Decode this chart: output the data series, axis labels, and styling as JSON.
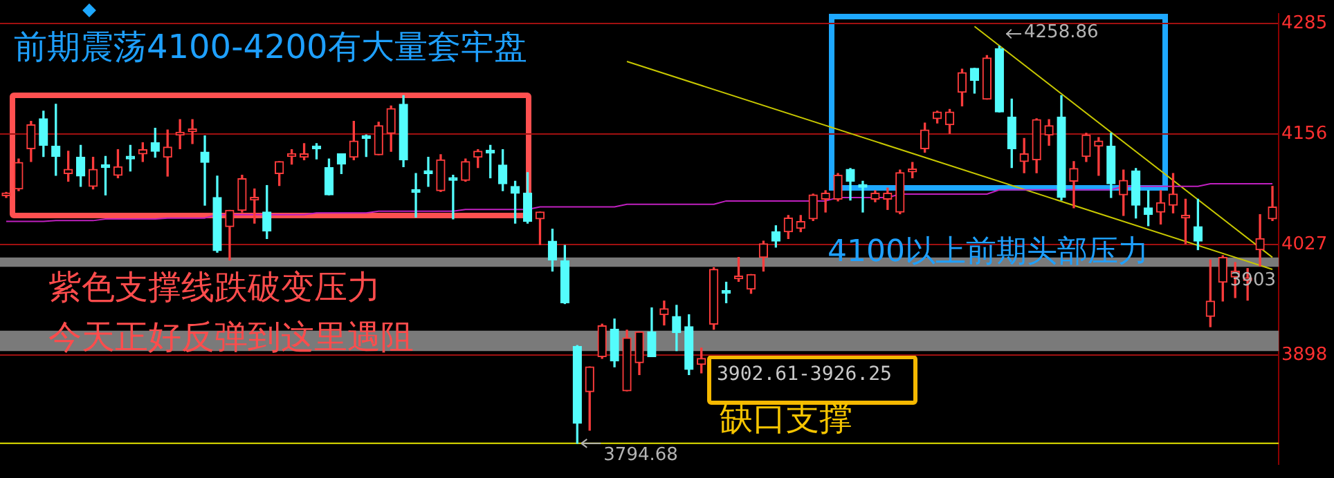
{
  "chart_data": {
    "type": "candlestick",
    "categories": [
      null,
      null,
      null,
      null,
      null,
      null,
      null,
      null,
      null,
      null,
      null,
      null,
      null,
      null,
      null,
      null,
      null,
      null,
      null,
      null,
      null,
      null,
      null,
      null,
      null,
      null,
      null,
      null,
      null,
      null,
      null,
      null,
      null,
      null,
      null,
      null,
      null,
      null,
      null,
      null,
      null,
      null,
      null,
      null,
      null,
      null,
      null,
      null,
      null,
      null,
      null,
      null,
      null,
      null,
      null,
      null,
      null,
      null,
      null,
      null,
      null,
      null,
      null,
      null,
      null,
      null,
      null,
      null,
      null,
      null,
      null,
      null,
      null,
      null,
      null,
      null,
      null,
      null,
      null,
      null,
      null,
      null,
      null,
      null,
      null,
      null,
      null,
      null,
      null,
      null,
      null,
      null,
      null,
      null,
      null,
      null,
      null,
      null,
      null,
      null,
      null,
      null,
      null
    ],
    "ohlc": [
      [
        4084,
        4088,
        4082,
        4086
      ],
      [
        4092,
        4127,
        4090,
        4123
      ],
      [
        4139,
        4171,
        4124,
        4167
      ],
      [
        4174,
        4183,
        4130,
        4143
      ],
      [
        4142,
        4191,
        4108,
        4130
      ],
      [
        4110,
        4136,
        4101,
        4115
      ],
      [
        4129,
        4143,
        4095,
        4107
      ],
      [
        4095,
        4129,
        4092,
        4115
      ],
      [
        4120,
        4130,
        4085,
        4117
      ],
      [
        4108,
        4138,
        4105,
        4118
      ],
      [
        4129,
        4143,
        4113,
        4127
      ],
      [
        4133,
        4146,
        4124,
        4138
      ],
      [
        4146,
        4163,
        4129,
        4136
      ],
      [
        4129,
        4161,
        4107,
        4141
      ],
      [
        4155,
        4173,
        4139,
        4156
      ],
      [
        4159,
        4173,
        4145,
        4161
      ],
      [
        4135,
        4154,
        4073,
        4123
      ],
      [
        4082,
        4107,
        4018,
        4020
      ],
      [
        4048,
        4067,
        4009,
        4067
      ],
      [
        4067,
        4108,
        4065,
        4104
      ],
      [
        4079,
        4092,
        4052,
        4081
      ],
      [
        4065,
        4096,
        4034,
        4043
      ],
      [
        4110,
        4124,
        4096,
        4124
      ],
      [
        4130,
        4138,
        4121,
        4132
      ],
      [
        4129,
        4145,
        4126,
        4133
      ],
      [
        4140,
        4145,
        4127,
        4139
      ],
      [
        4117,
        4127,
        4085,
        4085
      ],
      [
        4133,
        4133,
        4110,
        4121
      ],
      [
        4129,
        4171,
        4126,
        4148
      ],
      [
        4153,
        4155,
        4130,
        4151
      ],
      [
        4132,
        4170,
        4132,
        4166
      ],
      [
        4157,
        4189,
        4136,
        4186
      ],
      [
        4191,
        4201,
        4118,
        4126
      ],
      [
        4090,
        4110,
        4059,
        4088
      ],
      [
        4112,
        4129,
        4095,
        4110
      ],
      [
        4090,
        4132,
        4089,
        4126
      ],
      [
        4104,
        4108,
        4057,
        4102
      ],
      [
        4102,
        4127,
        4101,
        4124
      ],
      [
        4129,
        4138,
        4117,
        4136
      ],
      [
        4136,
        4143,
        4105,
        4134
      ],
      [
        4120,
        4138,
        4090,
        4098
      ],
      [
        4095,
        4101,
        4052,
        4087
      ],
      [
        4087,
        4111,
        4052,
        4054
      ],
      [
        4057,
        4065,
        4027,
        4065
      ],
      [
        4031,
        4045,
        3996,
        4009
      ],
      [
        4008,
        4026,
        3958,
        3959
      ],
      [
        3908,
        3909,
        3794.68,
        3818
      ],
      [
        3855,
        3884,
        3810,
        3884
      ],
      [
        3896,
        3934,
        3894,
        3932
      ],
      [
        3928,
        3940,
        3884,
        3891
      ],
      [
        3856,
        3927,
        3856,
        3918
      ],
      [
        3889,
        3925,
        3875,
        3925
      ],
      [
        3925,
        3953,
        3896,
        3896
      ],
      [
        3945,
        3961,
        3933,
        3952
      ],
      [
        3943,
        3956,
        3903,
        3924
      ],
      [
        3931,
        3945,
        3875,
        3881
      ],
      [
        3887,
        3906,
        3877,
        3894
      ],
      [
        3934,
        4000,
        3928,
        3998
      ],
      [
        3972,
        3983,
        3959,
        3970
      ],
      [
        3987,
        4012,
        3984,
        3989
      ],
      [
        3975,
        3992,
        3970,
        3992
      ],
      [
        4012,
        4031,
        3996,
        4028
      ],
      [
        4042,
        4049,
        4024,
        4031
      ],
      [
        4042,
        4061,
        4034,
        4058
      ],
      [
        4046,
        4061,
        4042,
        4054
      ],
      [
        4057,
        4086,
        4055,
        4085
      ],
      [
        4080,
        4090,
        4065,
        4087
      ],
      [
        4080,
        4110,
        4078,
        4108
      ],
      [
        4115,
        4116,
        4079,
        4101
      ],
      [
        4096,
        4101,
        4065,
        4094
      ],
      [
        4080,
        4090,
        4077,
        4087
      ],
      [
        4080,
        4093,
        4068,
        4087
      ],
      [
        4065,
        4114,
        4063,
        4111
      ],
      [
        4112,
        4123,
        4105,
        4113
      ],
      [
        4139,
        4169,
        4135,
        4161
      ],
      [
        4174,
        4183,
        4169,
        4182
      ],
      [
        4167,
        4185,
        4157,
        4182
      ],
      [
        4205,
        4232,
        4189,
        4228
      ],
      [
        4233,
        4233,
        4204,
        4219
      ],
      [
        4197,
        4248,
        4197,
        4245
      ],
      [
        4256,
        4258.86,
        4182,
        4182
      ],
      [
        4176,
        4197,
        4117,
        4139
      ],
      [
        4124,
        4151,
        4111,
        4133
      ],
      [
        4126,
        4174,
        4111,
        4173
      ],
      [
        4155,
        4173,
        4143,
        4166
      ],
      [
        4176,
        4201,
        4079,
        4082
      ],
      [
        4101,
        4124,
        4070,
        4116
      ],
      [
        4130,
        4157,
        4124,
        4155
      ],
      [
        4142,
        4152,
        4108,
        4148
      ],
      [
        4142,
        4157,
        4082,
        4098
      ],
      [
        4085,
        4114,
        4061,
        4102
      ],
      [
        4113,
        4116,
        4058,
        4073
      ],
      [
        4070,
        4090,
        4049,
        4062
      ],
      [
        4065,
        4090,
        4051,
        4076
      ],
      [
        4073,
        4110,
        4064,
        4086
      ],
      [
        4058,
        4080,
        4028,
        4060
      ],
      [
        4048,
        4080,
        4021,
        4031
      ],
      [
        3943,
        4009,
        3931,
        3961
      ],
      [
        3983,
        4014,
        3961,
        4012
      ],
      [
        3989,
        4006,
        3965,
        3996
      ],
      [
        3985,
        3999,
        3962,
        3986
      ],
      [
        4021,
        4062,
        4002,
        4034
      ],
      [
        4057,
        4095,
        4055,
        4071
      ]
    ],
    "series": [
      {
        "type": "line",
        "color": "#c020c0",
        "values": [
          4054,
          4054,
          4054,
          4054,
          4055,
          4055,
          4055,
          4055,
          4057,
          4057,
          4057,
          4057,
          4057,
          4058,
          4058,
          4058,
          4058,
          4062,
          4062,
          4062,
          4062,
          4062,
          4062,
          4062,
          4062,
          4064,
          4064,
          4064,
          4064,
          4064,
          4066,
          4066,
          4066,
          4066,
          4066,
          4066,
          4066,
          4068,
          4068,
          4068,
          4068,
          4068,
          4068,
          4071,
          4071,
          4071,
          4071,
          4071,
          4071,
          4071,
          4074,
          4074,
          4074,
          4074,
          4074,
          4074,
          4074,
          4074,
          4078,
          4078,
          4078,
          4078,
          4078,
          4078,
          4078,
          4078,
          4078,
          4082,
          4082,
          4082,
          4082,
          4082,
          4086,
          4086,
          4086,
          4086,
          4086,
          4086,
          4086,
          4086,
          4091,
          4091,
          4091,
          4091,
          4091,
          4091,
          4091,
          4091,
          4091,
          4091,
          4095,
          4095,
          4095,
          4095,
          4095,
          4095,
          4095,
          4098,
          4098,
          4098,
          4098,
          4098,
          4098
        ]
      },
      {
        "type": "line",
        "color": "#c8c800",
        "values": [
          null,
          null,
          null,
          null,
          null,
          null,
          null,
          null,
          null,
          null,
          null,
          null,
          null,
          null,
          null,
          null,
          null,
          null,
          null,
          null,
          null,
          null,
          null,
          null,
          null,
          null,
          null,
          null,
          null,
          null,
          null,
          null,
          null,
          null,
          null,
          null,
          null,
          null,
          null,
          null,
          null,
          null,
          null,
          null,
          null,
          null,
          null,
          null,
          null,
          null,
          null,
          null,
          null,
          null,
          null,
          null,
          null,
          null,
          null,
          null,
          null,
          null,
          null,
          null,
          null,
          null,
          null,
          null,
          null,
          null,
          null,
          null,
          null,
          null,
          null,
          null,
          null,
          null,
          4282,
          null,
          null,
          null,
          null,
          null,
          null,
          null,
          null,
          null,
          null,
          null,
          null,
          null,
          null,
          null,
          null,
          null,
          null,
          null,
          null,
          null,
          null,
          null,
          4012
        ]
      },
      {
        "type": "line",
        "color": "#c8c800",
        "values": [
          null,
          null,
          null,
          null,
          null,
          null,
          null,
          null,
          null,
          null,
          null,
          null,
          null,
          null,
          null,
          null,
          null,
          null,
          null,
          null,
          null,
          null,
          null,
          null,
          null,
          null,
          null,
          null,
          null,
          null,
          null,
          null,
          null,
          null,
          null,
          null,
          null,
          null,
          null,
          null,
          null,
          null,
          null,
          null,
          null,
          null,
          null,
          null,
          null,
          null,
          4241,
          null,
          null,
          null,
          null,
          null,
          null,
          null,
          null,
          null,
          null,
          null,
          null,
          null,
          null,
          null,
          null,
          null,
          null,
          null,
          null,
          null,
          null,
          null,
          null,
          null,
          null,
          null,
          null,
          null,
          null,
          null,
          null,
          null,
          null,
          null,
          null,
          null,
          null,
          null,
          null,
          null,
          null,
          null,
          null,
          null,
          null,
          null,
          null,
          null,
          null,
          null,
          3998
        ]
      }
    ],
    "ylim": [
      3770,
      4297
    ],
    "yticks": [
      4285,
      4156,
      4027,
      3898
    ],
    "grid": "y",
    "tick_labels": "y",
    "ref_lines": [
      {
        "axis": "y",
        "value": 3794.68,
        "color": "#e6e600"
      }
    ],
    "bands": [
      {
        "axis": "y",
        "from": 3902.61,
        "to": 3926.25,
        "color": "#7a7a7a"
      },
      {
        "axis": "y",
        "from": 4001,
        "to": 4012,
        "color": "#7a7a7a"
      }
    ],
    "annotations": [
      "前期震荡4100-4200有大量套牢盘",
      "紫色支撑线跌破变压力",
      "今天正好反弹到这里遇阻",
      "3902.61-3926.25",
      "缺口支撑",
      "4100以上前期头部压力",
      "4258.86",
      {
        "text": "3794.68",
        "y": 3794.68
      },
      {
        "text": "3903",
        "y": 3985
      }
    ]
  }
}
